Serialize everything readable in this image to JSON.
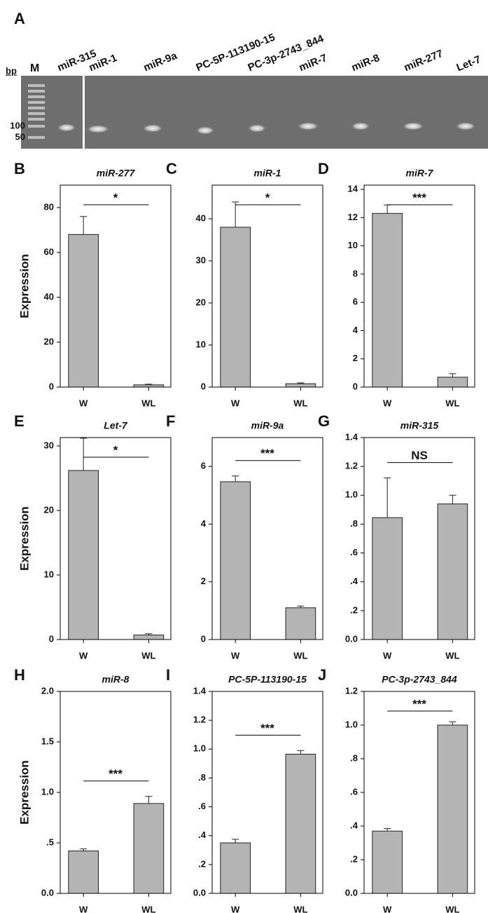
{
  "gel": {
    "panel": "A",
    "unit": "bp",
    "ladder": "M",
    "sizes": [
      100,
      50
    ],
    "lanes": [
      "miR-315",
      "miR-1",
      "miR-9a",
      "PC-5P-113190-15",
      "PC-3p-2743_844",
      "miR-7",
      "miR-8",
      "miR-277",
      "Let-7"
    ]
  },
  "chart_data": [
    {
      "type": "bar",
      "panel": "B",
      "title": "miR-277",
      "ylabel": "Expression",
      "categories": [
        "W",
        "WL"
      ],
      "values": [
        68,
        1
      ],
      "errors": [
        8,
        0.3
      ],
      "color": "#b4b4b4",
      "ylim": [
        0,
        90
      ],
      "yticks": [
        0,
        20,
        40,
        60,
        80
      ],
      "annotation": "*"
    },
    {
      "type": "bar",
      "panel": "C",
      "title": "miR-1",
      "categories": [
        "W",
        "WL"
      ],
      "values": [
        38,
        0.8
      ],
      "errors": [
        6,
        0.2
      ],
      "color": "#b4b4b4",
      "ylim": [
        0,
        48
      ],
      "yticks": [
        0,
        10,
        20,
        30,
        40
      ],
      "annotation": "*"
    },
    {
      "type": "bar",
      "panel": "D",
      "title": "miR-7",
      "categories": [
        "W",
        "WL"
      ],
      "values": [
        12.3,
        0.7
      ],
      "errors": [
        0.6,
        0.25
      ],
      "color": "#b4b4b4",
      "ylim": [
        0,
        14.3
      ],
      "yticks": [
        0,
        2,
        4,
        6,
        8,
        10,
        12,
        14
      ],
      "annotation": "***"
    },
    {
      "type": "bar",
      "panel": "E",
      "title": "Let-7",
      "ylabel": "Expression",
      "categories": [
        "W",
        "WL"
      ],
      "values": [
        26.2,
        0.7
      ],
      "errors": [
        5,
        0.2
      ],
      "color": "#b4b4b4",
      "ylim": [
        0,
        31.3
      ],
      "yticks": [
        0,
        10,
        20,
        30
      ],
      "annotation": "*"
    },
    {
      "type": "bar",
      "panel": "F",
      "title": "miR-9a",
      "categories": [
        "W",
        "WL"
      ],
      "values": [
        5.47,
        1.1
      ],
      "errors": [
        0.2,
        0.06
      ],
      "color": "#b4b4b4",
      "ylim": [
        0,
        7
      ],
      "yticks": [
        0,
        2,
        4,
        6
      ],
      "annotation": "***"
    },
    {
      "type": "bar",
      "panel": "G",
      "title": "miR-315",
      "categories": [
        "W",
        "WL"
      ],
      "values": [
        0.845,
        0.94
      ],
      "errors": [
        0.275,
        0.06
      ],
      "color": "#b4b4b4",
      "ylim": [
        0,
        1.4
      ],
      "yticks": [
        {
          "value": 0,
          "label": "0.0"
        },
        {
          "value": 0.2,
          "label": ".2"
        },
        {
          "value": 0.4,
          "label": ".4"
        },
        {
          "value": 0.6,
          "label": ".6"
        },
        {
          "value": 0.8,
          "label": ".8"
        },
        {
          "value": 1,
          "label": "1.0"
        },
        1.2,
        1.4
      ],
      "annotation": "NS"
    },
    {
      "type": "bar",
      "panel": "H",
      "title": "miR-8",
      "ylabel": "Expression",
      "categories": [
        "W",
        "WL"
      ],
      "values": [
        0.42,
        0.89
      ],
      "errors": [
        0.02,
        0.07
      ],
      "color": "#b4b4b4",
      "ylim": [
        0,
        2
      ],
      "yticks": [
        {
          "value": 0,
          "label": "0.0"
        },
        {
          "value": 0.5,
          "label": ".5"
        },
        {
          "value": 1,
          "label": "1.0"
        },
        1.5,
        {
          "value": 2,
          "label": "2.0"
        }
      ],
      "annotation": "***"
    },
    {
      "type": "bar",
      "panel": "I",
      "title": "PC-5P-113190-15",
      "categories": [
        "W",
        "WL"
      ],
      "values": [
        0.35,
        0.965
      ],
      "errors": [
        0.025,
        0.025
      ],
      "color": "#b4b4b4",
      "ylim": [
        0,
        1.4
      ],
      "yticks": [
        {
          "value": 0,
          "label": "0.0"
        },
        {
          "value": 0.2,
          "label": ".2"
        },
        {
          "value": 0.4,
          "label": ".4"
        },
        {
          "value": 0.6,
          "label": ".6"
        },
        {
          "value": 0.8,
          "label": ".8"
        },
        {
          "value": 1,
          "label": "1.0"
        },
        1.2,
        1.4
      ],
      "annotation": "***"
    },
    {
      "type": "bar",
      "panel": "J",
      "title": "PC-3p-2743_844",
      "categories": [
        "W",
        "WL"
      ],
      "values": [
        0.37,
        1.0
      ],
      "errors": [
        0.015,
        0.02
      ],
      "color": "#b4b4b4",
      "ylim": [
        0,
        1.2
      ],
      "yticks": [
        {
          "value": 0,
          "label": "0.0"
        },
        {
          "value": 0.2,
          "label": ".2"
        },
        {
          "value": 0.4,
          "label": ".4"
        },
        {
          "value": 0.6,
          "label": ".6"
        },
        {
          "value": 0.8,
          "label": ".8"
        },
        {
          "value": 1,
          "label": "1.0"
        },
        1.2
      ],
      "annotation": "***"
    }
  ]
}
